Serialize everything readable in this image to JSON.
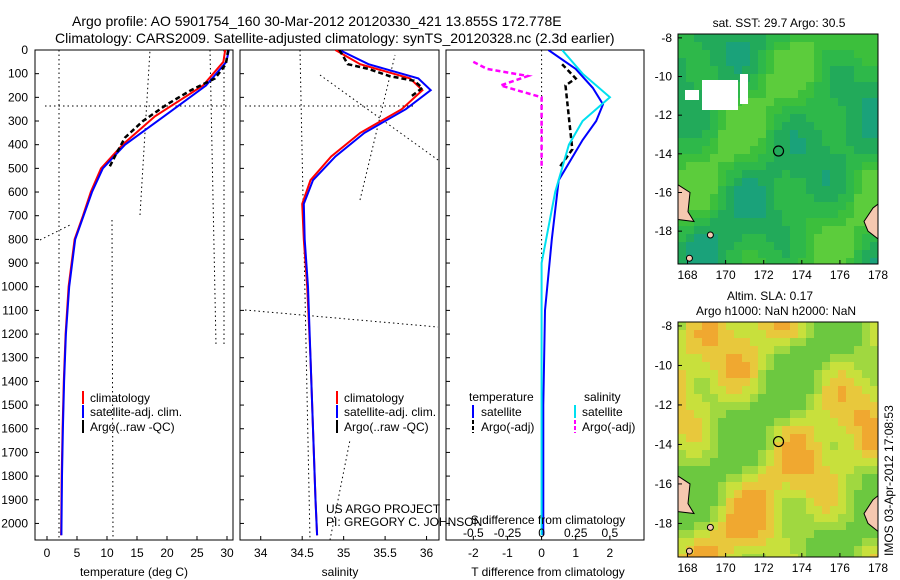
{
  "title": {
    "line1": "Argo profile: AO 5901754_160 30-Mar-2012 20120330_421 13.855S 172.778E",
    "line2": "Climatology: CARS2009. Satellite-adjusted climatology: synTS_20120328.nc (2.3d earlier)"
  },
  "credit": {
    "line1": "US ARGO PROJECT",
    "line2": "PI: GREGORY C. JOHNSON"
  },
  "watermark": "IMOS 03-Apr-2012 17:08:53",
  "colors": {
    "climatology": "#ff0000",
    "satellite": "#0000ff",
    "argo": "#000000",
    "satellite_salinity": "#00e0f0",
    "argo_salinity": "#ff00ff",
    "sst_field": "#3cbf3c",
    "sla_field": "#c8e03c",
    "land": "#f5c8b0"
  },
  "chart_data": [
    {
      "type": "line",
      "id": "temperature",
      "xlabel": "temperature (deg C)",
      "ylabel": "",
      "xlim": [
        -2,
        31
      ],
      "ylim": [
        2070,
        0
      ],
      "xticks": [
        0,
        5,
        10,
        15,
        20,
        25,
        30
      ],
      "yticks": [
        0,
        100,
        200,
        300,
        400,
        500,
        600,
        700,
        800,
        900,
        1000,
        1100,
        1200,
        1300,
        1400,
        1500,
        1600,
        1700,
        1800,
        1900,
        2000
      ],
      "legend": [
        "climatology",
        "satellite-adj. clim.",
        "Argo(..raw -QC)"
      ],
      "series": [
        {
          "name": "climatology",
          "x": [
            29.7,
            29.4,
            26,
            18,
            12.6,
            9,
            7.3,
            6,
            4.6,
            3.6,
            3.1,
            2.8,
            2.6,
            2.45,
            2.35
          ],
          "y": [
            0,
            50,
            150,
            280,
            400,
            500,
            600,
            700,
            800,
            1000,
            1200,
            1400,
            1600,
            1800,
            2050
          ]
        },
        {
          "name": "satellite-adj. clim.",
          "x": [
            30.3,
            29.9,
            26.5,
            19.5,
            13,
            9.3,
            7.5,
            6.1,
            4.7,
            3.7,
            3.15,
            2.85,
            2.65,
            2.5,
            2.4
          ],
          "y": [
            0,
            50,
            150,
            280,
            400,
            500,
            600,
            700,
            800,
            1000,
            1200,
            1400,
            1600,
            1800,
            2050
          ]
        },
        {
          "name": "Argo(..raw -QC)",
          "x": [
            30.2,
            29.8,
            28,
            24,
            20,
            16,
            13,
            11.5,
            10.3
          ],
          "y": [
            0,
            60,
            120,
            170,
            230,
            300,
            370,
            440,
            500
          ]
        }
      ]
    },
    {
      "type": "line",
      "id": "salinity",
      "xlabel": "salinity",
      "ylabel": "",
      "xlim": [
        33.75,
        36.15
      ],
      "ylim": [
        2070,
        0
      ],
      "xticks": [
        34,
        34.5,
        35,
        35.5,
        36
      ],
      "legend": [
        "climatology",
        "satellite-adj. clim.",
        "Argo(..raw -QC)"
      ],
      "series": [
        {
          "name": "climatology",
          "x": [
            34.9,
            35.2,
            35.8,
            35.95,
            35.7,
            35.2,
            34.85,
            34.6,
            34.5,
            34.52,
            34.56,
            34.6,
            34.63,
            34.66,
            34.68
          ],
          "y": [
            0,
            60,
            120,
            170,
            250,
            350,
            450,
            550,
            650,
            800,
            1000,
            1300,
            1600,
            1900,
            2050
          ]
        },
        {
          "name": "satellite-adj. clim.",
          "x": [
            34.95,
            35.3,
            35.9,
            36.05,
            35.75,
            35.25,
            34.9,
            34.63,
            34.52,
            34.53,
            34.57,
            34.6,
            34.63,
            34.66,
            34.68
          ],
          "y": [
            0,
            60,
            120,
            170,
            250,
            350,
            450,
            550,
            650,
            800,
            1000,
            1300,
            1600,
            1900,
            2050
          ]
        },
        {
          "name": "Argo(..raw -QC)",
          "x": [
            34.95,
            35.05,
            35.3,
            35.55,
            35.85,
            35.95,
            35.8
          ],
          "y": [
            0,
            60,
            80,
            110,
            130,
            160,
            200
          ]
        }
      ]
    },
    {
      "type": "line",
      "id": "differences",
      "xlabel": "T difference from climatology",
      "xlabel_top": "S difference from climatology",
      "ylabel": "",
      "xlim": [
        -2.8,
        3.0
      ],
      "ylim": [
        2070,
        0
      ],
      "xticks": [
        -2,
        -1,
        0,
        1,
        2
      ],
      "xticks_s": [
        -0.5,
        -0.25,
        0,
        0.25,
        0.5
      ],
      "legend_titles": [
        "temperature",
        "salinity"
      ],
      "legend": [
        "satellite",
        "Argo(-adj)",
        "satellite",
        "Argo(-adj)"
      ],
      "series": [
        {
          "name": "satellite",
          "quantity": "temperature",
          "x": [
            0.2,
            1.0,
            1.5,
            1.8,
            1.6,
            1.2,
            0.5,
            0.3,
            0.1,
            0.05,
            0.05
          ],
          "y": [
            0,
            80,
            160,
            230,
            300,
            380,
            550,
            800,
            1100,
            1500,
            2050
          ]
        },
        {
          "name": "Argo(-adj)",
          "quantity": "temperature",
          "x": [
            0.6,
            0.8,
            1.0,
            0.7,
            0.9,
            0.5
          ],
          "y": [
            60,
            90,
            120,
            150,
            420,
            500
          ]
        },
        {
          "name": "satellite",
          "quantity": "salinity",
          "x": [
            0.15,
            0.3,
            0.5,
            0.3,
            0.2,
            0.1,
            0,
            0
          ],
          "y": [
            0,
            100,
            200,
            300,
            400,
            600,
            900,
            2050
          ]
        },
        {
          "name": "Argo(-adj)",
          "quantity": "salinity",
          "x": [
            -0.5,
            -0.4,
            -0.1,
            -0.3,
            0,
            0
          ],
          "y": [
            50,
            80,
            110,
            150,
            200,
            500
          ]
        }
      ]
    },
    {
      "type": "heatmap",
      "id": "sst_map",
      "title": "sat. SST: 29.7 Argo: 30.5",
      "xlim": [
        167.5,
        178
      ],
      "ylim": [
        -19.7,
        -7.8
      ],
      "xticks": [
        168,
        170,
        172,
        174,
        176,
        178
      ],
      "yticks": [
        -8,
        -10,
        -12,
        -14,
        -16,
        -18
      ],
      "float_position": {
        "lon": 172.778,
        "lat": -13.855
      }
    },
    {
      "type": "heatmap",
      "id": "sla_map",
      "title_line1": "Altim. SLA: 0.17",
      "title_line2": "Argo h1000: NaN h2000: NaN",
      "xlim": [
        167.5,
        178
      ],
      "ylim": [
        -19.7,
        -7.8
      ],
      "xticks": [
        168,
        170,
        172,
        174,
        176,
        178
      ],
      "yticks": [
        -8,
        -10,
        -12,
        -14,
        -16,
        -18
      ],
      "float_position": {
        "lon": 172.778,
        "lat": -13.855
      }
    }
  ]
}
